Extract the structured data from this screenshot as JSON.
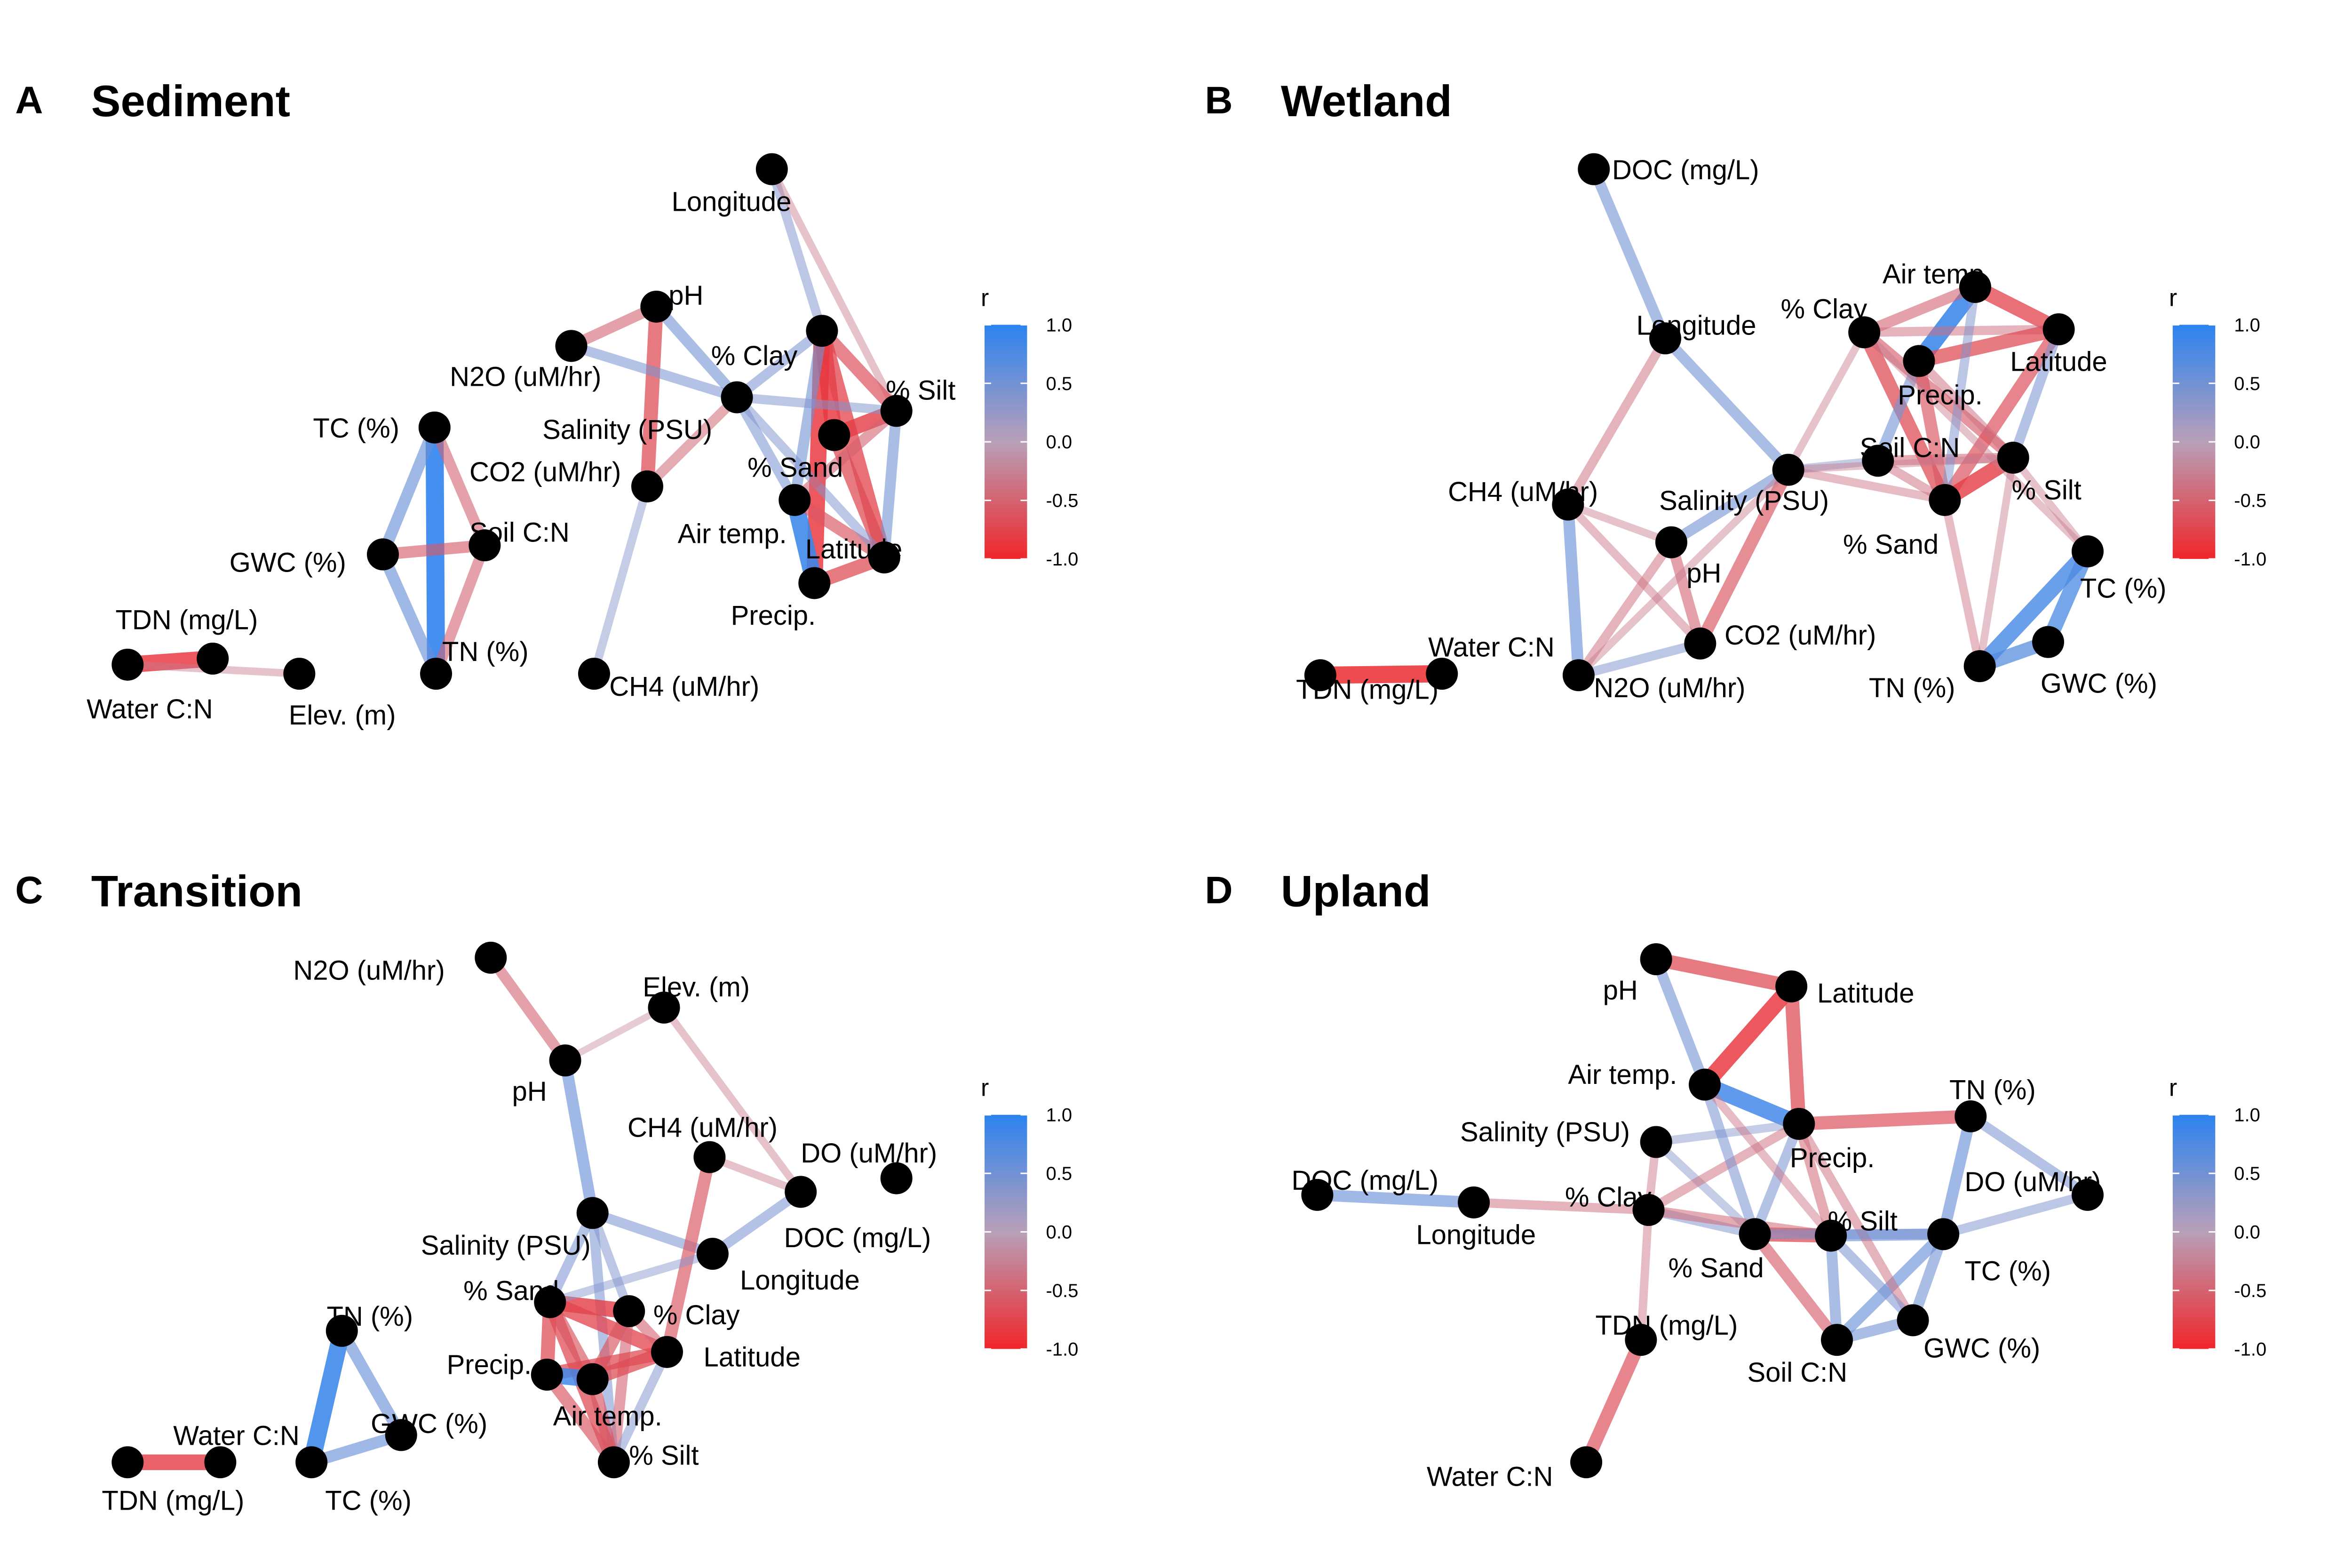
{
  "legend": {
    "title": "r",
    "ticks": [
      "1.0",
      "0.5",
      "0.0",
      "-0.5",
      "-1.0"
    ]
  },
  "panels": [
    {
      "letter": "A",
      "title": "Sediment",
      "nodes": [
        {
          "id": "longitude",
          "label": "Longitude"
        },
        {
          "id": "ph",
          "label": "pH"
        },
        {
          "id": "n2o",
          "label": "N2O (uM/hr)"
        },
        {
          "id": "clay",
          "label": "% Clay"
        },
        {
          "id": "silt",
          "label": "% Silt"
        },
        {
          "id": "salinity",
          "label": "Salinity (PSU)"
        },
        {
          "id": "co2",
          "label": "CO2 (uM/hr)"
        },
        {
          "id": "tc",
          "label": "TC (%)"
        },
        {
          "id": "sand",
          "label": "% Sand"
        },
        {
          "id": "soilcn",
          "label": "Soil C:N"
        },
        {
          "id": "airtemp",
          "label": "Air temp."
        },
        {
          "id": "latitude",
          "label": "Latitude"
        },
        {
          "id": "gwc",
          "label": "GWC (%)"
        },
        {
          "id": "precip",
          "label": "Precip."
        },
        {
          "id": "tdn",
          "label": "TDN (mg/L)"
        },
        {
          "id": "tn",
          "label": "TN (%)"
        },
        {
          "id": "watercn",
          "label": "Water C:N"
        },
        {
          "id": "elev",
          "label": "Elev. (m)"
        },
        {
          "id": "ch4",
          "label": "CH4 (uM/hr)"
        }
      ],
      "edges": [
        [
          "tc",
          "tn",
          0.95
        ],
        [
          "tc",
          "gwc",
          0.55
        ],
        [
          "gwc",
          "tn",
          0.55
        ],
        [
          "tc",
          "soilcn",
          -0.5
        ],
        [
          "gwc",
          "soilcn",
          -0.55
        ],
        [
          "soilcn",
          "tn",
          -0.5
        ],
        [
          "tdn",
          "watercn",
          -0.85
        ],
        [
          "watercn",
          "elev",
          -0.3
        ],
        [
          "n2o",
          "ph",
          -0.5
        ],
        [
          "ph",
          "co2",
          -0.7
        ],
        [
          "n2o",
          "salinity",
          0.45
        ],
        [
          "salinity",
          "co2",
          -0.45
        ],
        [
          "ph",
          "salinity",
          0.5
        ],
        [
          "co2",
          "ch4",
          0.35
        ],
        [
          "longitude",
          "clay",
          0.4
        ],
        [
          "longitude",
          "silt",
          -0.3
        ],
        [
          "clay",
          "sand",
          -0.85
        ],
        [
          "clay",
          "silt",
          -0.65
        ],
        [
          "clay",
          "latitude",
          -0.75
        ],
        [
          "clay",
          "precip",
          -0.85
        ],
        [
          "clay",
          "airtemp",
          0.5
        ],
        [
          "silt",
          "sand",
          -0.8
        ],
        [
          "silt",
          "latitude",
          0.5
        ],
        [
          "sand",
          "latitude",
          -0.7
        ],
        [
          "airtemp",
          "precip",
          0.9
        ],
        [
          "airtemp",
          "latitude",
          -0.6
        ],
        [
          "precip",
          "latitude",
          -0.7
        ],
        [
          "salinity",
          "clay",
          0.45
        ],
        [
          "salinity",
          "silt",
          0.4
        ],
        [
          "salinity",
          "airtemp",
          0.45
        ],
        [
          "salinity",
          "latitude",
          0.4
        ],
        [
          "airtemp",
          "silt",
          -0.5
        ]
      ]
    },
    {
      "letter": "B",
      "title": "Wetland",
      "nodes": [
        {
          "id": "doc",
          "label": "DOC (mg/L)"
        },
        {
          "id": "airtemp",
          "label": "Air temp."
        },
        {
          "id": "longitude",
          "label": "Longitude"
        },
        {
          "id": "clay",
          "label": "% Clay"
        },
        {
          "id": "latitude",
          "label": "Latitude"
        },
        {
          "id": "precip",
          "label": "Precip."
        },
        {
          "id": "soilcn",
          "label": "Soil C:N"
        },
        {
          "id": "silt",
          "label": "% Silt"
        },
        {
          "id": "ch4",
          "label": "CH4 (uM/hr)"
        },
        {
          "id": "salinity",
          "label": "Salinity (PSU)"
        },
        {
          "id": "sand",
          "label": "% Sand"
        },
        {
          "id": "ph",
          "label": "pH"
        },
        {
          "id": "tc",
          "label": "TC (%)"
        },
        {
          "id": "co2",
          "label": "CO2 (uM/hr)"
        },
        {
          "id": "watercn",
          "label": "Water C:N"
        },
        {
          "id": "tdn",
          "label": "TDN (mg/L)"
        },
        {
          "id": "n2o",
          "label": "N2O (uM/hr)"
        },
        {
          "id": "tn",
          "label": "TN (%)"
        },
        {
          "id": "gwc",
          "label": "GWC (%)"
        }
      ],
      "edges": [
        [
          "doc",
          "longitude",
          0.5
        ],
        [
          "longitude",
          "ch4",
          -0.4
        ],
        [
          "longitude",
          "salinity",
          0.5
        ],
        [
          "ch4",
          "n2o",
          0.55
        ],
        [
          "ch4",
          "co2",
          -0.35
        ],
        [
          "n2o",
          "ph",
          -0.4
        ],
        [
          "n2o",
          "co2",
          0.4
        ],
        [
          "ph",
          "salinity",
          0.5
        ],
        [
          "ph",
          "co2",
          -0.5
        ],
        [
          "salinity",
          "co2",
          -0.6
        ],
        [
          "salinity",
          "n2o",
          -0.3
        ],
        [
          "ch4",
          "ph",
          -0.3
        ],
        [
          "tdn",
          "watercn",
          -0.9
        ],
        [
          "airtemp",
          "precip",
          0.9
        ],
        [
          "airtemp",
          "latitude",
          -0.75
        ],
        [
          "airtemp",
          "clay",
          -0.5
        ],
        [
          "clay",
          "latitude",
          -0.4
        ],
        [
          "clay",
          "sand",
          -0.7
        ],
        [
          "clay",
          "silt",
          -0.55
        ],
        [
          "precip",
          "latitude",
          -0.7
        ],
        [
          "precip",
          "soilcn",
          0.5
        ],
        [
          "precip",
          "sand",
          -0.6
        ],
        [
          "latitude",
          "sand",
          -0.65
        ],
        [
          "latitude",
          "silt",
          0.45
        ],
        [
          "soilcn",
          "sand",
          -0.4
        ],
        [
          "soilcn",
          "silt",
          -0.45
        ],
        [
          "sand",
          "silt",
          -0.8
        ],
        [
          "silt",
          "tc",
          -0.3
        ],
        [
          "salinity",
          "clay",
          -0.3
        ],
        [
          "salinity",
          "sand",
          -0.35
        ],
        [
          "salinity",
          "soilcn",
          0.35
        ],
        [
          "salinity",
          "silt",
          -0.3
        ],
        [
          "tc",
          "tn",
          0.8
        ],
        [
          "tc",
          "gwc",
          0.75
        ],
        [
          "tn",
          "gwc",
          0.7
        ],
        [
          "sand",
          "tn",
          -0.35
        ],
        [
          "silt",
          "tn",
          -0.3
        ],
        [
          "clay",
          "tc",
          -0.3
        ],
        [
          "airtemp",
          "sand",
          0.4
        ],
        [
          "precip",
          "silt",
          -0.4
        ]
      ]
    },
    {
      "letter": "C",
      "title": "Transition",
      "nodes": [
        {
          "id": "n2o",
          "label": "N2O (uM/hr)"
        },
        {
          "id": "elev",
          "label": "Elev. (m)"
        },
        {
          "id": "ph",
          "label": "pH"
        },
        {
          "id": "ch4",
          "label": "CH4 (uM/hr)"
        },
        {
          "id": "do",
          "label": "DO (uM/hr)"
        },
        {
          "id": "salinity",
          "label": "Salinity (PSU)"
        },
        {
          "id": "doc",
          "label": "DOC (mg/L)"
        },
        {
          "id": "longitude",
          "label": "Longitude"
        },
        {
          "id": "sand",
          "label": "% Sand"
        },
        {
          "id": "clay",
          "label": "% Clay"
        },
        {
          "id": "tn",
          "label": "TN (%)"
        },
        {
          "id": "latitude",
          "label": "Latitude"
        },
        {
          "id": "precip",
          "label": "Precip."
        },
        {
          "id": "airtemp",
          "label": "Air temp."
        },
        {
          "id": "gwc",
          "label": "GWC (%)"
        },
        {
          "id": "watercn",
          "label": "Water C:N"
        },
        {
          "id": "silt",
          "label": "% Silt"
        },
        {
          "id": "tdn",
          "label": "TDN (mg/L)"
        },
        {
          "id": "tc",
          "label": "TC (%)"
        }
      ],
      "edges": [
        [
          "n2o",
          "ph",
          -0.5
        ],
        [
          "ph",
          "elev",
          -0.25
        ],
        [
          "elev",
          "doc",
          -0.3
        ],
        [
          "ph",
          "salinity",
          0.55
        ],
        [
          "salinity",
          "longitude",
          0.45
        ],
        [
          "longitude",
          "doc",
          0.45
        ],
        [
          "doc",
          "ch4",
          -0.3
        ],
        [
          "ch4",
          "latitude",
          -0.6
        ],
        [
          "salinity",
          "sand",
          0.45
        ],
        [
          "salinity",
          "clay",
          0.4
        ],
        [
          "salinity",
          "silt",
          0.45
        ],
        [
          "sand",
          "clay",
          -0.8
        ],
        [
          "sand",
          "latitude",
          -0.75
        ],
        [
          "sand",
          "precip",
          -0.7
        ],
        [
          "sand",
          "silt",
          -0.7
        ],
        [
          "sand",
          "airtemp",
          -0.6
        ],
        [
          "clay",
          "latitude",
          -0.5
        ],
        [
          "clay",
          "airtemp",
          -0.6
        ],
        [
          "clay",
          "silt",
          -0.5
        ],
        [
          "latitude",
          "airtemp",
          -0.7
        ],
        [
          "latitude",
          "precip",
          -0.7
        ],
        [
          "precip",
          "airtemp",
          0.85
        ],
        [
          "airtemp",
          "silt",
          -0.6
        ],
        [
          "precip",
          "silt",
          -0.6
        ],
        [
          "latitude",
          "silt",
          0.4
        ],
        [
          "tn",
          "tc",
          0.9
        ],
        [
          "tn",
          "gwc",
          0.55
        ],
        [
          "gwc",
          "tc",
          0.55
        ],
        [
          "tdn",
          "watercn",
          -0.8
        ],
        [
          "longitude",
          "sand",
          0.35
        ]
      ]
    },
    {
      "letter": "D",
      "title": "Upland",
      "nodes": [
        {
          "id": "ph",
          "label": "pH"
        },
        {
          "id": "latitude",
          "label": "Latitude"
        },
        {
          "id": "airtemp",
          "label": "Air temp."
        },
        {
          "id": "tn",
          "label": "TN (%)"
        },
        {
          "id": "salinity",
          "label": "Salinity (PSU)"
        },
        {
          "id": "precip",
          "label": "Precip."
        },
        {
          "id": "doc",
          "label": "DOC (mg/L)"
        },
        {
          "id": "do",
          "label": "DO (uM/hr)"
        },
        {
          "id": "clay",
          "label": "% Clay"
        },
        {
          "id": "silt",
          "label": "% Silt"
        },
        {
          "id": "longitude",
          "label": "Longitude"
        },
        {
          "id": "tc",
          "label": "TC (%)"
        },
        {
          "id": "sand",
          "label": "% Sand"
        },
        {
          "id": "tdn",
          "label": "TDN (mg/L)"
        },
        {
          "id": "gwc",
          "label": "GWC (%)"
        },
        {
          "id": "soilcn",
          "label": "Soil C:N"
        },
        {
          "id": "watercn",
          "label": "Water C:N"
        }
      ],
      "edges": [
        [
          "ph",
          "latitude",
          -0.7
        ],
        [
          "ph",
          "airtemp",
          0.5
        ],
        [
          "latitude",
          "airtemp",
          -0.85
        ],
        [
          "latitude",
          "precip",
          -0.7
        ],
        [
          "airtemp",
          "precip",
          0.85
        ],
        [
          "precip",
          "tn",
          -0.65
        ],
        [
          "tn",
          "tc",
          0.55
        ],
        [
          "tn",
          "do",
          0.45
        ],
        [
          "tc",
          "do",
          0.4
        ],
        [
          "doc",
          "longitude",
          0.55
        ],
        [
          "longitude",
          "clay",
          -0.4
        ],
        [
          "salinity",
          "clay",
          -0.35
        ],
        [
          "salinity",
          "precip",
          0.35
        ],
        [
          "salinity",
          "sand",
          0.35
        ],
        [
          "clay",
          "sand",
          0.4
        ],
        [
          "clay",
          "precip",
          -0.4
        ],
        [
          "clay",
          "tdn",
          -0.35
        ],
        [
          "tdn",
          "watercn",
          -0.65
        ],
        [
          "sand",
          "silt",
          -0.7
        ],
        [
          "silt",
          "tc",
          0.55
        ],
        [
          "sand",
          "soilcn",
          -0.55
        ],
        [
          "silt",
          "soilcn",
          0.5
        ],
        [
          "soilcn",
          "gwc",
          0.5
        ],
        [
          "tc",
          "gwc",
          0.5
        ],
        [
          "tc",
          "soilcn",
          0.55
        ],
        [
          "precip",
          "sand",
          0.45
        ],
        [
          "precip",
          "silt",
          -0.45
        ],
        [
          "airtemp",
          "sand",
          0.45
        ],
        [
          "precip",
          "gwc",
          -0.4
        ],
        [
          "clay",
          "silt",
          -0.45
        ],
        [
          "sand",
          "tc",
          0.45
        ],
        [
          "airtemp",
          "silt",
          -0.35
        ],
        [
          "silt",
          "gwc",
          0.45
        ]
      ]
    }
  ]
}
